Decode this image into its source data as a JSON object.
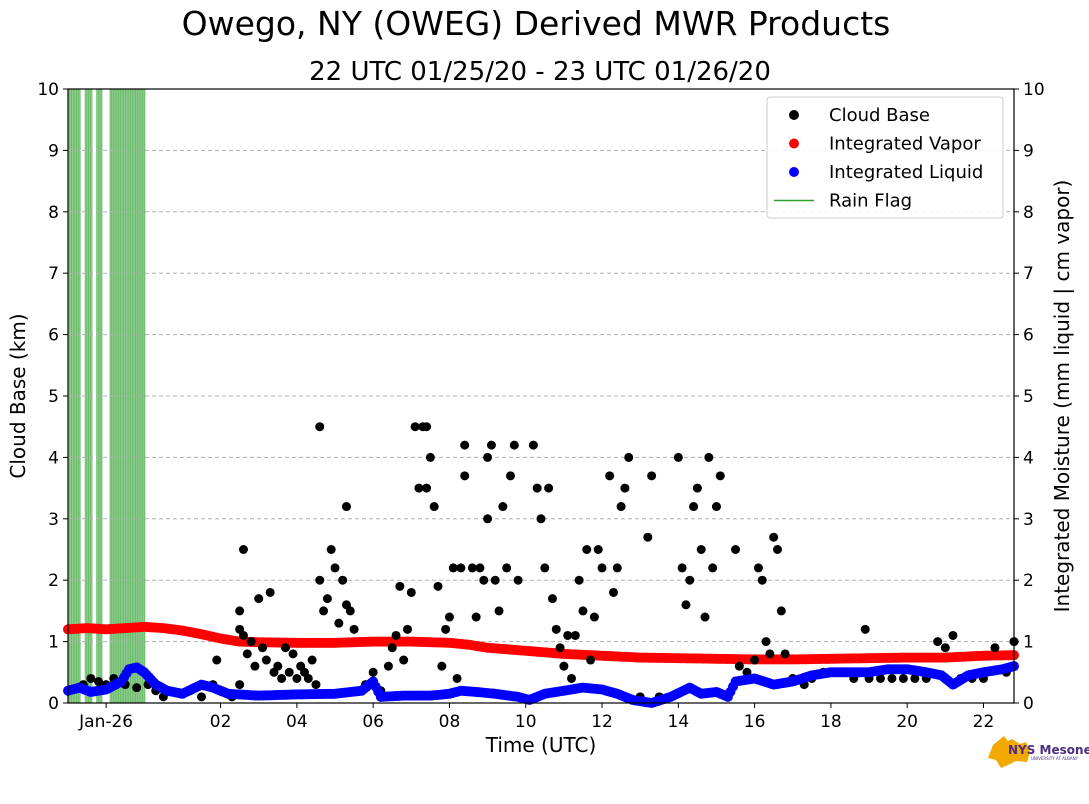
{
  "chart_data": {
    "type": "scatter",
    "title": "Owego, NY (OWEG) Derived MWR Products",
    "subtitle": "22 UTC 01/25/20 - 23 UTC 01/26/20",
    "xlabel": "Time (UTC)",
    "ylabel_left": "Cloud Base (km)",
    "ylabel_right": "Integrated Moisture (mm liquid | cm vapor)",
    "xlim": [
      -2,
      22.8
    ],
    "ylim": [
      0,
      10
    ],
    "x_unit": "hours relative to 00 UTC 01/26/20",
    "xticks": [
      {
        "x": -1.0,
        "label": "Jan-26"
      },
      {
        "x": 2,
        "label": "02"
      },
      {
        "x": 4,
        "label": "04"
      },
      {
        "x": 6,
        "label": "06"
      },
      {
        "x": 8,
        "label": "08"
      },
      {
        "x": 10,
        "label": "10"
      },
      {
        "x": 12,
        "label": "12"
      },
      {
        "x": 14,
        "label": "14"
      },
      {
        "x": 16,
        "label": "16"
      },
      {
        "x": 18,
        "label": "18"
      },
      {
        "x": 20,
        "label": "20"
      },
      {
        "x": 22,
        "label": "22"
      }
    ],
    "yticks": [
      "0",
      "1",
      "2",
      "3",
      "4",
      "5",
      "6",
      "7",
      "8",
      "9",
      "10"
    ],
    "grid": "horizontal dashed",
    "legend_position": "top-right",
    "legend": [
      {
        "label": "Cloud Base",
        "color": "#000000",
        "marker": "dot"
      },
      {
        "label": "Integrated Vapor",
        "color": "#ff0000",
        "marker": "dot"
      },
      {
        "label": "Integrated Liquid",
        "color": "#0000ff",
        "marker": "dot"
      },
      {
        "label": "Rain Flag",
        "color": "#2ca02c",
        "marker": "line"
      }
    ],
    "rain_flag_intervals": [
      [
        -2.0,
        -1.67
      ],
      [
        -1.55,
        -1.37
      ],
      [
        -1.25,
        -1.1
      ],
      [
        -0.9,
        0.03
      ]
    ],
    "cloud_base": [
      [
        -1.6,
        0.3
      ],
      [
        -1.4,
        0.4
      ],
      [
        -1.2,
        0.35
      ],
      [
        -1.0,
        0.3
      ],
      [
        -0.8,
        0.4
      ],
      [
        -0.5,
        0.3
      ],
      [
        -0.2,
        0.25
      ],
      [
        0.1,
        0.3
      ],
      [
        0.3,
        0.2
      ],
      [
        0.5,
        0.1
      ],
      [
        1.2,
        0.2
      ],
      [
        1.5,
        0.1
      ],
      [
        1.8,
        0.3
      ],
      [
        2.0,
        0.2
      ],
      [
        2.3,
        0.1
      ],
      [
        2.5,
        0.3
      ],
      [
        1.9,
        0.7
      ],
      [
        2.5,
        1.5
      ],
      [
        2.6,
        2.5
      ],
      [
        2.5,
        1.2
      ],
      [
        2.6,
        1.1
      ],
      [
        2.7,
        0.8
      ],
      [
        2.8,
        1.0
      ],
      [
        2.9,
        0.6
      ],
      [
        3.0,
        1.7
      ],
      [
        3.1,
        0.9
      ],
      [
        3.2,
        0.7
      ],
      [
        3.3,
        1.8
      ],
      [
        3.4,
        0.5
      ],
      [
        3.5,
        0.6
      ],
      [
        3.6,
        0.4
      ],
      [
        3.7,
        0.9
      ],
      [
        3.8,
        0.5
      ],
      [
        3.9,
        0.8
      ],
      [
        4.0,
        0.4
      ],
      [
        4.1,
        0.6
      ],
      [
        4.2,
        0.5
      ],
      [
        4.3,
        0.4
      ],
      [
        4.4,
        0.7
      ],
      [
        4.5,
        0.3
      ],
      [
        4.6,
        4.5
      ],
      [
        4.6,
        2.0
      ],
      [
        4.7,
        1.5
      ],
      [
        4.8,
        1.7
      ],
      [
        4.9,
        2.5
      ],
      [
        5.0,
        2.2
      ],
      [
        5.1,
        1.3
      ],
      [
        5.2,
        2.0
      ],
      [
        5.3,
        3.2
      ],
      [
        5.3,
        1.6
      ],
      [
        5.4,
        1.5
      ],
      [
        5.5,
        1.2
      ],
      [
        5.8,
        0.3
      ],
      [
        6.0,
        0.5
      ],
      [
        6.2,
        0.2
      ],
      [
        6.4,
        0.6
      ],
      [
        6.5,
        0.9
      ],
      [
        6.6,
        1.1
      ],
      [
        6.8,
        0.7
      ],
      [
        6.7,
        1.9
      ],
      [
        6.9,
        1.2
      ],
      [
        7.0,
        1.8
      ],
      [
        7.1,
        4.5
      ],
      [
        7.2,
        3.5
      ],
      [
        7.3,
        4.5
      ],
      [
        7.4,
        3.5
      ],
      [
        7.4,
        4.5
      ],
      [
        7.5,
        4.0
      ],
      [
        7.6,
        3.2
      ],
      [
        7.7,
        1.9
      ],
      [
        7.8,
        0.6
      ],
      [
        7.9,
        1.2
      ],
      [
        8.0,
        1.4
      ],
      [
        8.1,
        2.2
      ],
      [
        8.2,
        0.4
      ],
      [
        8.3,
        2.2
      ],
      [
        8.4,
        4.2
      ],
      [
        8.4,
        3.7
      ],
      [
        8.6,
        2.2
      ],
      [
        8.7,
        1.4
      ],
      [
        8.8,
        2.2
      ],
      [
        8.9,
        2.0
      ],
      [
        9.0,
        4.0
      ],
      [
        9.1,
        4.2
      ],
      [
        9.0,
        3.0
      ],
      [
        9.2,
        2.0
      ],
      [
        9.3,
        1.5
      ],
      [
        9.4,
        3.2
      ],
      [
        9.5,
        2.2
      ],
      [
        9.6,
        3.7
      ],
      [
        9.7,
        4.2
      ],
      [
        9.8,
        2.0
      ],
      [
        10.2,
        4.2
      ],
      [
        10.3,
        3.5
      ],
      [
        10.4,
        3.0
      ],
      [
        10.5,
        2.2
      ],
      [
        10.6,
        3.5
      ],
      [
        10.7,
        1.7
      ],
      [
        10.8,
        1.2
      ],
      [
        10.9,
        0.9
      ],
      [
        11.0,
        0.6
      ],
      [
        11.1,
        1.1
      ],
      [
        11.2,
        0.4
      ],
      [
        11.3,
        1.1
      ],
      [
        11.4,
        2.0
      ],
      [
        11.5,
        1.5
      ],
      [
        11.6,
        2.5
      ],
      [
        11.7,
        0.7
      ],
      [
        11.8,
        1.4
      ],
      [
        11.9,
        2.5
      ],
      [
        12.0,
        2.2
      ],
      [
        12.2,
        3.7
      ],
      [
        12.3,
        1.8
      ],
      [
        12.4,
        2.2
      ],
      [
        12.5,
        3.2
      ],
      [
        12.6,
        3.5
      ],
      [
        12.7,
        4.0
      ],
      [
        13.0,
        0.1
      ],
      [
        13.2,
        2.7
      ],
      [
        13.3,
        3.7
      ],
      [
        13.5,
        0.1
      ],
      [
        14.0,
        4.0
      ],
      [
        14.1,
        2.2
      ],
      [
        14.2,
        1.6
      ],
      [
        14.3,
        2.0
      ],
      [
        14.4,
        3.2
      ],
      [
        14.5,
        3.5
      ],
      [
        14.6,
        2.5
      ],
      [
        14.7,
        1.4
      ],
      [
        14.8,
        4.0
      ],
      [
        14.9,
        2.2
      ],
      [
        15.0,
        3.2
      ],
      [
        15.1,
        3.7
      ],
      [
        15.5,
        2.5
      ],
      [
        15.6,
        0.6
      ],
      [
        15.8,
        0.5
      ],
      [
        16.0,
        0.7
      ],
      [
        16.1,
        2.2
      ],
      [
        16.2,
        2.0
      ],
      [
        16.3,
        1.0
      ],
      [
        16.4,
        0.8
      ],
      [
        16.5,
        2.7
      ],
      [
        16.6,
        2.5
      ],
      [
        16.7,
        1.5
      ],
      [
        16.8,
        0.8
      ],
      [
        17.0,
        0.4
      ],
      [
        17.3,
        0.3
      ],
      [
        17.5,
        0.4
      ],
      [
        17.8,
        0.5
      ],
      [
        18.0,
        0.5
      ],
      [
        18.3,
        0.5
      ],
      [
        18.6,
        0.4
      ],
      [
        18.9,
        1.2
      ],
      [
        19.0,
        0.4
      ],
      [
        19.3,
        0.4
      ],
      [
        19.6,
        0.4
      ],
      [
        19.9,
        0.4
      ],
      [
        20.2,
        0.4
      ],
      [
        20.5,
        0.4
      ],
      [
        20.8,
        1.0
      ],
      [
        21.0,
        0.9
      ],
      [
        21.2,
        1.1
      ],
      [
        21.4,
        0.4
      ],
      [
        21.7,
        0.4
      ],
      [
        22.0,
        0.4
      ],
      [
        22.3,
        0.9
      ],
      [
        22.6,
        0.5
      ],
      [
        22.8,
        1.0
      ]
    ],
    "integrated_vapor": [
      [
        -2.0,
        1.2
      ],
      [
        -1.5,
        1.22
      ],
      [
        -1.0,
        1.2
      ],
      [
        -0.5,
        1.22
      ],
      [
        0.0,
        1.24
      ],
      [
        0.5,
        1.22
      ],
      [
        1.0,
        1.18
      ],
      [
        1.5,
        1.12
      ],
      [
        2.0,
        1.05
      ],
      [
        2.5,
        1.0
      ],
      [
        3.0,
        0.99
      ],
      [
        4.0,
        0.98
      ],
      [
        5.0,
        0.98
      ],
      [
        6.0,
        1.0
      ],
      [
        7.0,
        1.0
      ],
      [
        8.0,
        0.98
      ],
      [
        8.5,
        0.95
      ],
      [
        9.0,
        0.9
      ],
      [
        10.0,
        0.85
      ],
      [
        11.0,
        0.8
      ],
      [
        12.0,
        0.77
      ],
      [
        13.0,
        0.74
      ],
      [
        14.0,
        0.73
      ],
      [
        15.0,
        0.72
      ],
      [
        16.0,
        0.71
      ],
      [
        17.0,
        0.71
      ],
      [
        18.0,
        0.72
      ],
      [
        19.0,
        0.73
      ],
      [
        20.0,
        0.74
      ],
      [
        21.0,
        0.74
      ],
      [
        22.0,
        0.77
      ],
      [
        22.8,
        0.78
      ]
    ],
    "integrated_liquid": [
      [
        -2.0,
        0.2
      ],
      [
        -1.7,
        0.25
      ],
      [
        -1.4,
        0.18
      ],
      [
        -1.0,
        0.22
      ],
      [
        -0.6,
        0.35
      ],
      [
        -0.4,
        0.55
      ],
      [
        -0.2,
        0.58
      ],
      [
        0.0,
        0.5
      ],
      [
        0.3,
        0.3
      ],
      [
        0.6,
        0.2
      ],
      [
        1.0,
        0.15
      ],
      [
        1.5,
        0.3
      ],
      [
        1.8,
        0.25
      ],
      [
        2.2,
        0.15
      ],
      [
        3.0,
        0.12
      ],
      [
        4.0,
        0.14
      ],
      [
        5.0,
        0.15
      ],
      [
        5.7,
        0.2
      ],
      [
        6.0,
        0.35
      ],
      [
        6.2,
        0.1
      ],
      [
        6.8,
        0.12
      ],
      [
        7.5,
        0.12
      ],
      [
        8.0,
        0.15
      ],
      [
        8.3,
        0.2
      ],
      [
        8.7,
        0.18
      ],
      [
        9.2,
        0.15
      ],
      [
        9.8,
        0.1
      ],
      [
        10.1,
        0.05
      ],
      [
        10.5,
        0.15
      ],
      [
        11.0,
        0.2
      ],
      [
        11.5,
        0.25
      ],
      [
        12.0,
        0.22
      ],
      [
        12.4,
        0.15
      ],
      [
        12.8,
        0.05
      ],
      [
        13.3,
        0.0
      ],
      [
        13.8,
        0.1
      ],
      [
        14.3,
        0.25
      ],
      [
        14.6,
        0.15
      ],
      [
        15.0,
        0.18
      ],
      [
        15.3,
        0.1
      ],
      [
        15.5,
        0.35
      ],
      [
        16.0,
        0.4
      ],
      [
        16.5,
        0.3
      ],
      [
        17.0,
        0.35
      ],
      [
        17.5,
        0.45
      ],
      [
        18.0,
        0.5
      ],
      [
        18.5,
        0.5
      ],
      [
        19.0,
        0.5
      ],
      [
        19.5,
        0.55
      ],
      [
        20.0,
        0.55
      ],
      [
        20.5,
        0.5
      ],
      [
        20.9,
        0.45
      ],
      [
        21.2,
        0.3
      ],
      [
        21.6,
        0.45
      ],
      [
        22.0,
        0.5
      ],
      [
        22.5,
        0.55
      ],
      [
        22.8,
        0.6
      ]
    ]
  },
  "logo": {
    "text": "NYS Mesonet",
    "sub": "UNIVERSITY AT ALBANY"
  }
}
